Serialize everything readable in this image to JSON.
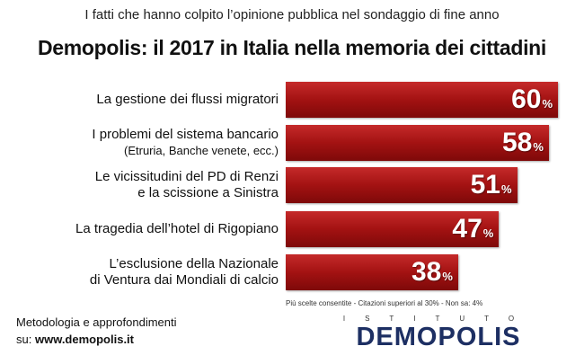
{
  "header": {
    "subtitle": "I fatti che hanno colpito l’opinione pubblica nel sondaggio di fine anno",
    "title": "Demopolis: il 2017 in Italia nella memoria dei cittadini"
  },
  "chart_data": {
    "type": "bar",
    "orientation": "horizontal",
    "title": "Demopolis: il 2017 in Italia nella memoria dei cittadini",
    "subtitle": "I fatti che hanno colpito l’opinione pubblica nel sondaggio di fine anno",
    "categories": [
      [
        "La gestione dei flussi migratori"
      ],
      [
        "I problemi del sistema bancario",
        "(Etruria, Banche venete, ecc.)"
      ],
      [
        "Le vicissitudini del PD di Renzi",
        "e la scissione a Sinistra"
      ],
      [
        "La tragedia dell’hotel di Rigopiano"
      ],
      [
        "L’esclusione della Nazionale",
        "di Ventura dai Mondiali di calcio"
      ]
    ],
    "values": [
      60,
      58,
      51,
      47,
      38
    ],
    "value_unit": "%",
    "bar_color": "#a31212",
    "value_color": "#ffffff"
  },
  "note": "Più scelte consentite - Citazioni superiori al 30% - Non sa: 4%",
  "footer": {
    "line1": "Metodologia e approfondimenti",
    "prefix": "su: ",
    "url": "www.demopolis.it"
  },
  "logo": {
    "top": "ISTITUTO",
    "main": "DEMOPOLIS",
    "color": "#1d2f63"
  }
}
